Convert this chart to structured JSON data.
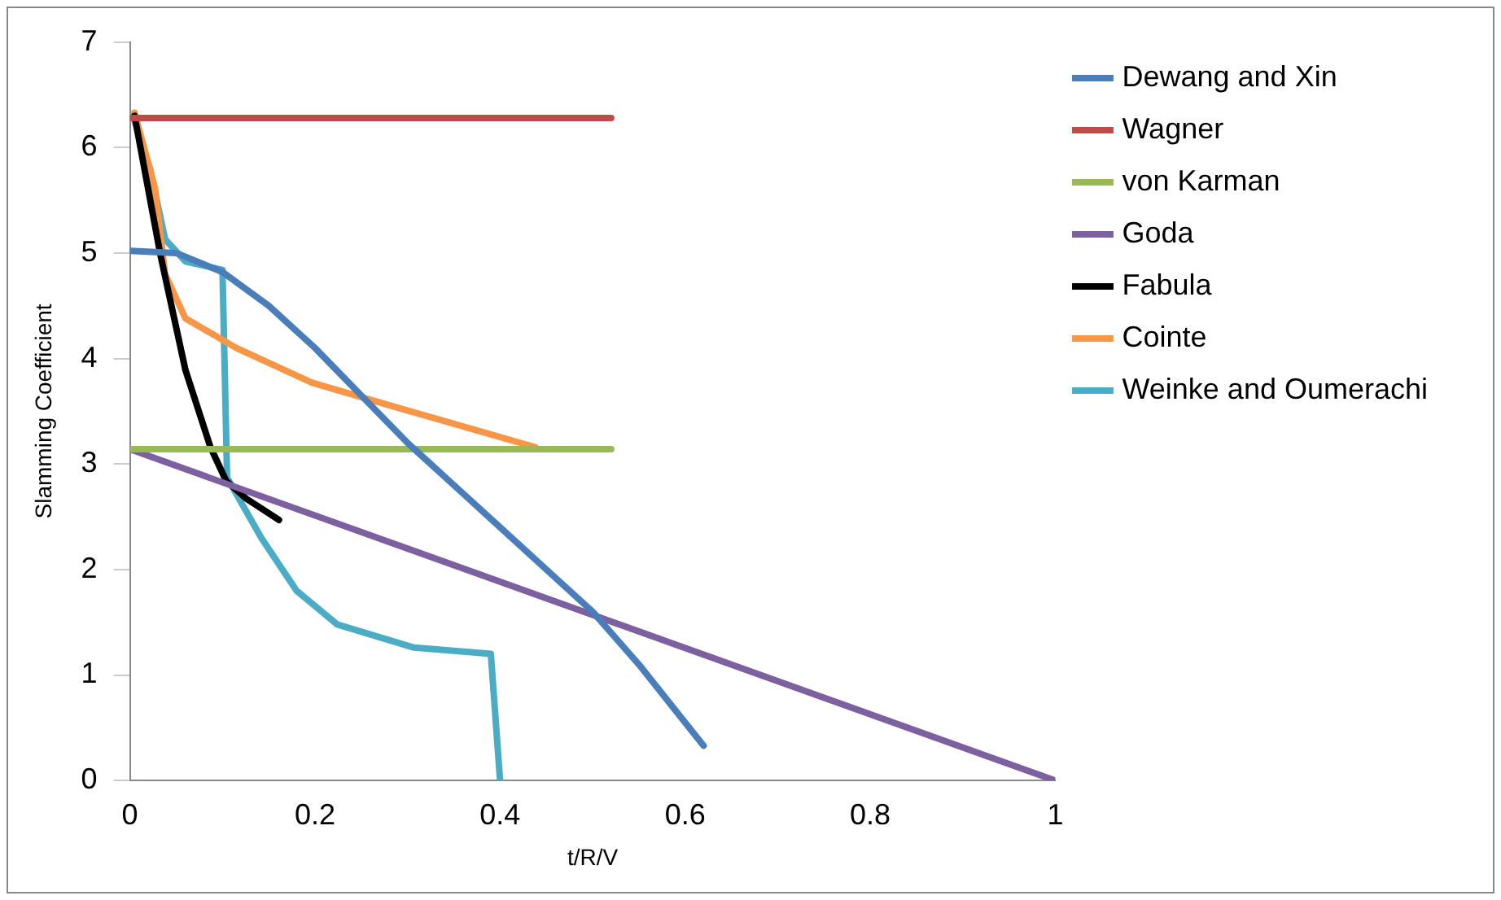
{
  "chart_data": {
    "type": "line",
    "xlabel": "t/R/V",
    "ylabel": "Slamming Coefficient",
    "xlim": [
      0,
      1
    ],
    "xticks": [
      0,
      0.2,
      0.4,
      0.6,
      0.8,
      1
    ],
    "ylim": [
      0,
      7
    ],
    "yticks": [
      0,
      1,
      2,
      3,
      4,
      5,
      6,
      7
    ],
    "grid": false,
    "legend": "right",
    "marker": "none",
    "line_style": "solid",
    "series": [
      {
        "name": "Dewang and Xin",
        "color": "#4a7ebb",
        "x": [
          0,
          0.05,
          0.1,
          0.15,
          0.2,
          0.25,
          0.3,
          0.35,
          0.4,
          0.45,
          0.5,
          0.55,
          0.6,
          0.62
        ],
        "values": [
          5.02,
          5.0,
          4.82,
          4.5,
          4.1,
          3.65,
          3.2,
          2.8,
          2.4,
          2.0,
          1.6,
          1.1,
          0.55,
          0.33
        ]
      },
      {
        "name": "Wagner",
        "color": "#be4b48",
        "x": [
          0,
          0.52
        ],
        "values": [
          6.28,
          6.28
        ]
      },
      {
        "name": "von Karman",
        "color": "#98b954",
        "x": [
          0,
          0.52
        ],
        "values": [
          3.14,
          3.14
        ]
      },
      {
        "name": "Goda",
        "color": "#7d60a0",
        "x": [
          0,
          1
        ],
        "values": [
          3.14,
          0
        ]
      },
      {
        "name": "Fabula",
        "color": "#000000",
        "x": [
          0.005,
          0.033,
          0.06,
          0.087,
          0.104,
          0.126,
          0.161
        ],
        "values": [
          6.3,
          4.98,
          3.89,
          3.16,
          2.84,
          2.67,
          2.47
        ]
      },
      {
        "name": "Cointe",
        "color": "#f79646",
        "x": [
          0.005,
          0.027,
          0.038,
          0.06,
          0.115,
          0.197,
          0.279,
          0.438
        ],
        "values": [
          6.33,
          5.62,
          4.8,
          4.38,
          4.1,
          3.77,
          3.56,
          3.16
        ]
      },
      {
        "name": "Weinke and Oumerachi",
        "color": "#4bacc6",
        "x": [
          0.003,
          0.022,
          0.038,
          0.06,
          0.1,
          0.105,
          0.142,
          0.18,
          0.224,
          0.307,
          0.39,
          0.4
        ],
        "values": [
          6.31,
          5.79,
          5.13,
          4.92,
          4.84,
          2.87,
          2.3,
          1.8,
          1.48,
          1.26,
          1.2,
          0
        ]
      }
    ]
  }
}
